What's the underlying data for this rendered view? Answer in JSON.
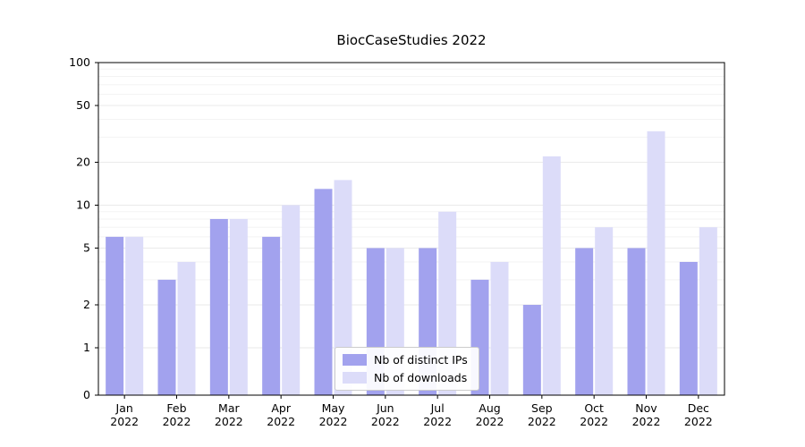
{
  "chart_data": {
    "type": "bar",
    "title": "BiocCaseStudies 2022",
    "categories": [
      "Jan",
      "Feb",
      "Mar",
      "Apr",
      "May",
      "Jun",
      "Jul",
      "Aug",
      "Sep",
      "Oct",
      "Nov",
      "Dec"
    ],
    "category_year": "2022",
    "series": [
      {
        "name": "Nb of distinct IPs",
        "color": "#a2a2ee",
        "values": [
          6,
          3,
          8,
          6,
          13,
          5,
          5,
          3,
          2,
          5,
          5,
          4
        ]
      },
      {
        "name": "Nb of downloads",
        "color": "#dcdcf9",
        "values": [
          6,
          4,
          8,
          10,
          15,
          5,
          9,
          4,
          22,
          7,
          33,
          7
        ]
      }
    ],
    "y_ticks": [
      0,
      1,
      2,
      5,
      10,
      20,
      50,
      100
    ],
    "y_minor_ticks": [
      3,
      4,
      6,
      7,
      8,
      9,
      30,
      40,
      60,
      70,
      80,
      90
    ],
    "y_scale": "symlog",
    "ylim": [
      0,
      100
    ],
    "grid": true,
    "legend_position": "lower center",
    "colors": {
      "axis": "#000000",
      "grid_major": "#eaeaea",
      "grid_minor": "#f3f3f3",
      "tick_label": "#000000"
    }
  }
}
